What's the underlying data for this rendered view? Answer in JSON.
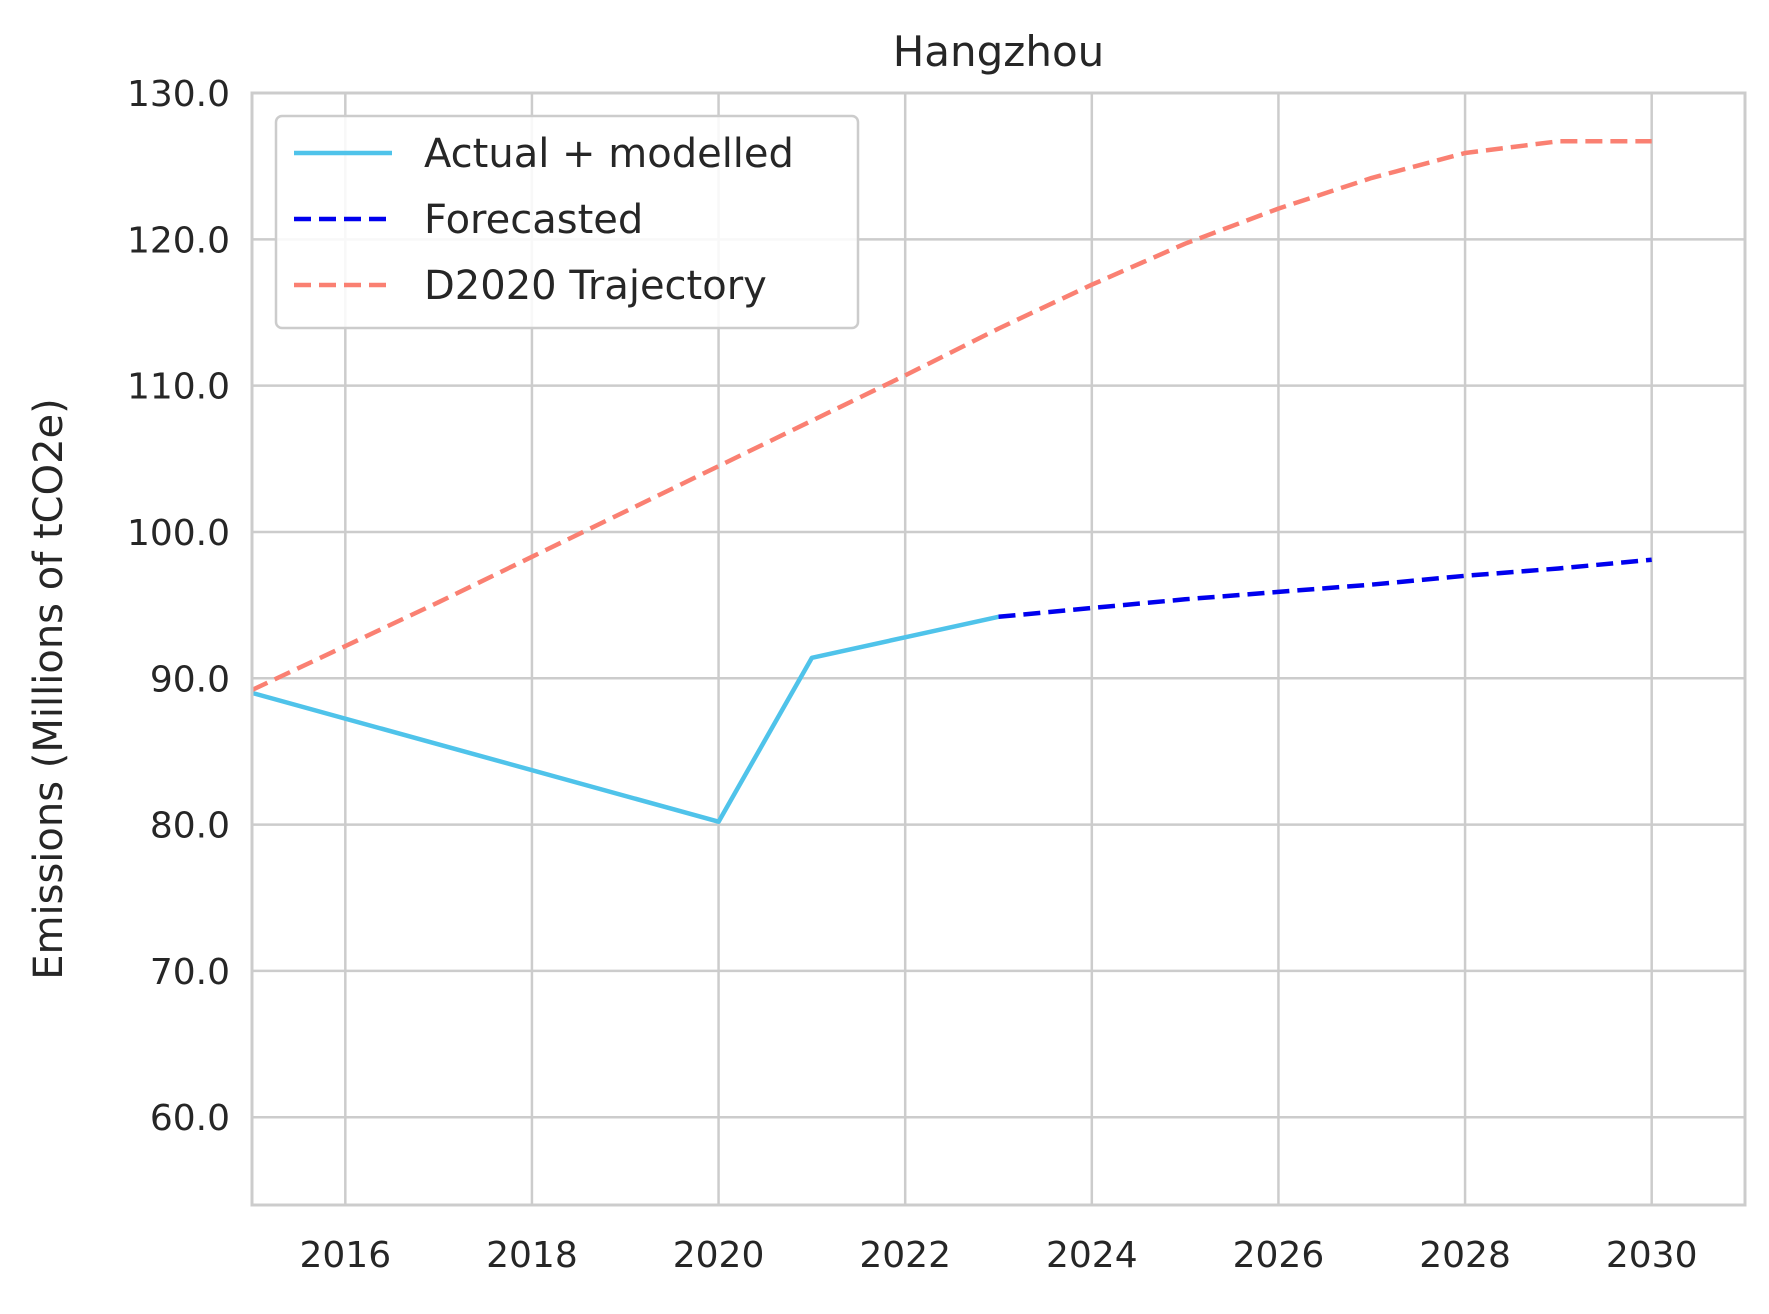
{
  "chart_data": {
    "type": "line",
    "title": "Hangzhou",
    "xlabel": "",
    "ylabel": "Emissions (Millions of tCO2e)",
    "xlim": [
      2015,
      2031
    ],
    "ylim": [
      54,
      130
    ],
    "x_ticks": [
      2016,
      2018,
      2020,
      2022,
      2024,
      2026,
      2028,
      2030
    ],
    "x_tick_labels": [
      "2016",
      "2018",
      "2020",
      "2022",
      "2024",
      "2026",
      "2028",
      "2030"
    ],
    "y_ticks": [
      60,
      70,
      80,
      90,
      100,
      110,
      120,
      130
    ],
    "y_tick_labels": [
      "60.0",
      "70.0",
      "80.0",
      "90.0",
      "100.0",
      "110.0",
      "120.0",
      "130.0"
    ],
    "grid": true,
    "legend_position": "top-left",
    "series": [
      {
        "name": "Actual + modelled",
        "style": "solid",
        "color": "#4fc3ea",
        "x": [
          2015,
          2020,
          2021,
          2023
        ],
        "y": [
          89.0,
          80.2,
          91.4,
          94.2
        ]
      },
      {
        "name": "Forecasted",
        "style": "dashed",
        "color": "#0000ee",
        "x": [
          2023,
          2024,
          2025,
          2026,
          2027,
          2028,
          2029,
          2030
        ],
        "y": [
          94.2,
          94.8,
          95.4,
          95.9,
          96.4,
          97.0,
          97.5,
          98.1
        ]
      },
      {
        "name": "D2020 Trajectory",
        "style": "dashed",
        "color": "#fa8072",
        "x": [
          2015,
          2016,
          2017,
          2018,
          2019,
          2020,
          2021,
          2022,
          2023,
          2024,
          2025,
          2026,
          2027,
          2028,
          2029,
          2030
        ],
        "y": [
          89.2,
          92.2,
          95.2,
          98.3,
          101.4,
          104.5,
          107.6,
          110.7,
          113.9,
          116.9,
          119.7,
          122.1,
          124.2,
          125.9,
          126.7,
          126.7
        ]
      }
    ]
  }
}
